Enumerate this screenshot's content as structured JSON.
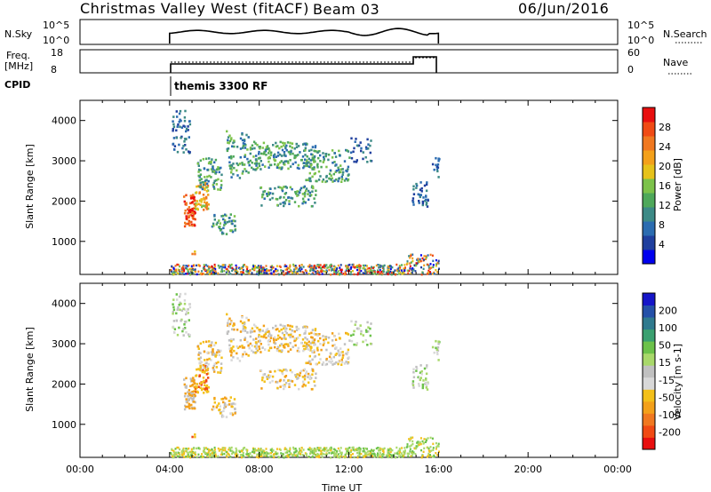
{
  "header": {
    "title": "Christmas Valley West (fitACF)",
    "beam": "Beam 03",
    "date": "06/Jun/2016"
  },
  "top_panel": {
    "nsky_label": "N.Sky",
    "nsky_ticks": [
      "10^5",
      "10^0"
    ],
    "nsky_right_ticks": [
      "10^5",
      "10^0"
    ],
    "nsearch_label": "N.Search",
    "freq_label_1": "Freq.",
    "freq_label_2": "[MHz]",
    "freq_ticks": [
      "18",
      "8"
    ],
    "nave_ticks": [
      "60",
      "0"
    ],
    "nave_label": "Nave",
    "cpid_label": "CPID",
    "cpid_value": "themis 3300 RF"
  },
  "colors": {
    "power": [
      "#0000ee",
      "#1f3f9e",
      "#2b6cb0",
      "#3c8a86",
      "#4ea85a",
      "#7cc24a",
      "#e6c21a",
      "#f3a01a",
      "#f07820",
      "#f04a14",
      "#e80f0f"
    ],
    "velocity": [
      "#1515c8",
      "#2450a8",
      "#2f7a8e",
      "#3aa070",
      "#6cc24a",
      "#a8d86a",
      "#c0c0c0",
      "#d8d8d8",
      "#f3c01a",
      "#f3a01a",
      "#f07820",
      "#f04a14",
      "#e80f0f"
    ]
  },
  "chart_data": [
    {
      "type": "heatmap",
      "ylabel": "Slant Range [km]",
      "x_range_hours": [
        0,
        24
      ],
      "x_active_hours": [
        4,
        16
      ],
      "ylim": [
        180,
        4500
      ],
      "yticks": [
        "1000",
        "2000",
        "3000",
        "4000"
      ],
      "colorbar": {
        "label": "Power [dB]",
        "ticks": [
          "4",
          "8",
          "12",
          "16",
          "20",
          "24",
          "28"
        ],
        "range": [
          0,
          30
        ]
      }
    },
    {
      "type": "heatmap",
      "ylabel": "Slant Range [km]",
      "xlabel": "Time UT",
      "xticks": [
        "00:00",
        "04:00",
        "08:00",
        "12:00",
        "16:00",
        "20:00",
        "00:00"
      ],
      "x_range_hours": [
        0,
        24
      ],
      "ylim": [
        180,
        4500
      ],
      "yticks": [
        "1000",
        "2000",
        "3000",
        "4000"
      ],
      "colorbar": {
        "label": "Velocity [m s-1]",
        "ticks": [
          "200",
          "100",
          "50",
          "15",
          "-15",
          "-50",
          "-100",
          "-200"
        ]
      }
    }
  ]
}
